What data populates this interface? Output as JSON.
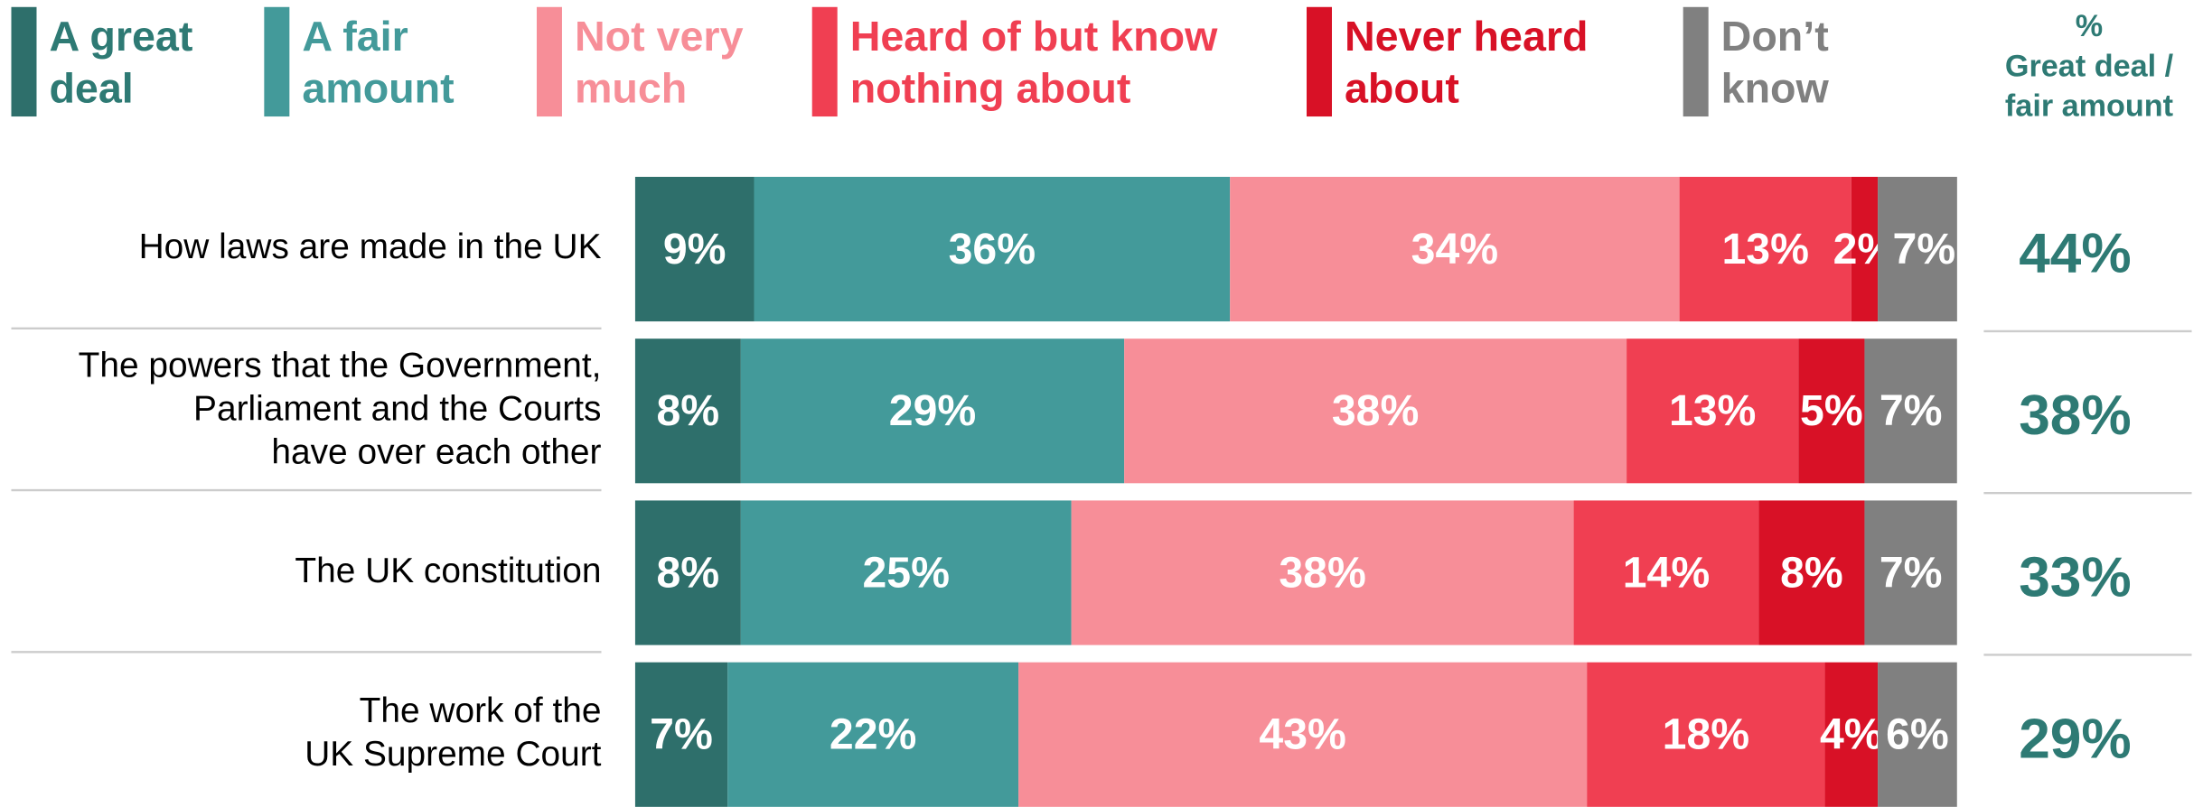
{
  "chart_data": {
    "type": "stacked_barh",
    "categories": [
      [
        "How laws are made in the UK"
      ],
      [
        "The powers that the Government,",
        "Parliament and the Courts",
        "have over each other"
      ],
      [
        "The UK constitution"
      ],
      [
        "The work of the",
        "UK Supreme Court"
      ]
    ],
    "xlim": [
      0,
      100
    ],
    "series": [
      {
        "name": [
          "A great",
          "deal"
        ],
        "color": "#2e6f6b",
        "legend_color": "#2e7a74",
        "values": [
          9,
          8,
          8,
          7
        ],
        "value_labels": [
          "9%",
          "8%",
          "8%",
          "7%"
        ]
      },
      {
        "name": [
          "A fair",
          "amount"
        ],
        "color": "#439a9a",
        "legend_color": "#439a9a",
        "values": [
          36,
          29,
          25,
          22
        ],
        "value_labels": [
          "36%",
          "29%",
          "25%",
          "22%"
        ]
      },
      {
        "name": [
          "Not very",
          "much"
        ],
        "color": "#f78e98",
        "legend_color": "#f78e98",
        "values": [
          34,
          38,
          38,
          43
        ],
        "value_labels": [
          "34%",
          "38%",
          "38%",
          "43%"
        ]
      },
      {
        "name": [
          "Heard of but know",
          "nothing about"
        ],
        "color": "#f03f52",
        "legend_color": "#f03f52",
        "values": [
          13,
          13,
          14,
          18
        ],
        "value_labels": [
          "13%",
          "13%",
          "14%",
          "18%"
        ]
      },
      {
        "name": [
          "Never heard",
          "about"
        ],
        "color": "#d81126",
        "legend_color": "#d81126",
        "values": [
          2,
          5,
          8,
          4
        ],
        "value_labels": [
          "2%",
          "5%",
          "8%",
          "4%"
        ]
      },
      {
        "name": [
          "Don’t",
          "know"
        ],
        "color": "#808080",
        "legend_color": "#808080",
        "values": [
          7,
          7,
          7,
          6
        ],
        "value_labels": [
          "7%",
          "7%",
          "7%",
          "6%"
        ]
      }
    ],
    "summary": {
      "title": [
        "%",
        "Great deal /",
        "fair amount"
      ],
      "color": "#2e7a74",
      "values": [
        44,
        38,
        33,
        29
      ],
      "value_labels": [
        "44%",
        "38%",
        "33%",
        "29%"
      ]
    }
  }
}
